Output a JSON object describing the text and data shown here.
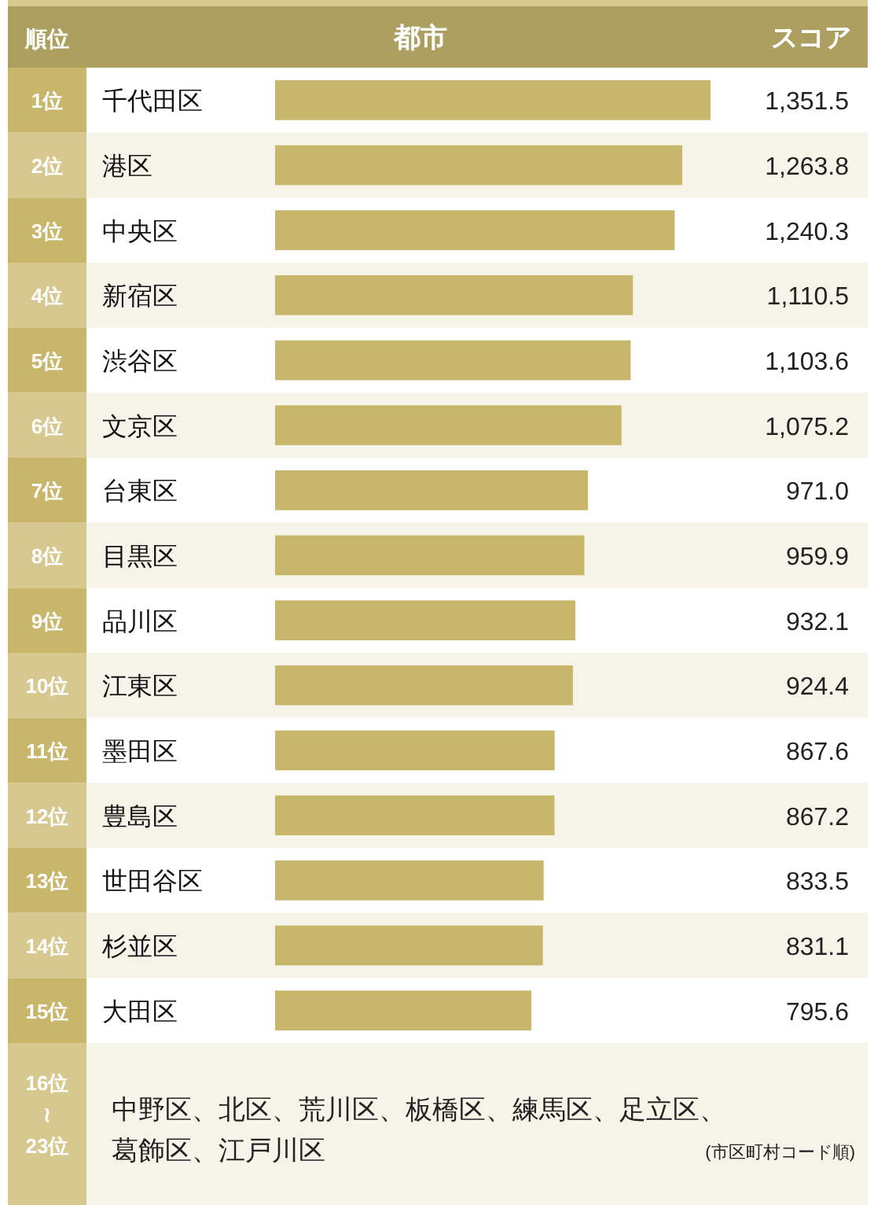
{
  "chart_data": {
    "type": "bar",
    "orientation": "horizontal",
    "categories": [
      "千代田区",
      "港区",
      "中央区",
      "新宿区",
      "渋谷区",
      "文京区",
      "台東区",
      "目黒区",
      "品川区",
      "江東区",
      "墨田区",
      "豊島区",
      "世田谷区",
      "杉並区",
      "大田区"
    ],
    "values": [
      1351.5,
      1263.8,
      1240.3,
      1110.5,
      1103.6,
      1075.2,
      971.0,
      959.9,
      932.1,
      924.4,
      867.6,
      867.2,
      833.5,
      831.1,
      795.6
    ],
    "value_labels": [
      "1,351.5",
      "1,263.8",
      "1,240.3",
      "1,110.5",
      "1,103.6",
      "1,075.2",
      "971.0",
      "959.9",
      "932.1",
      "924.4",
      "867.6",
      "867.2",
      "833.5",
      "831.1",
      "795.6"
    ],
    "color": "#c8b66a",
    "annotations": [
      "順位",
      "都市",
      "スコア",
      "1位",
      "2位",
      "3位",
      "4位",
      "5位",
      "6位",
      "7位",
      "8位",
      "9位",
      "10位",
      "11位",
      "12位",
      "13位",
      "14位",
      "15位",
      "16位\n≀\n23位",
      "中野区、北区、荒川区、板橋区、練馬区、足立区、葛飾区、江戸川区",
      "(市区町村コード順)"
    ]
  }
}
